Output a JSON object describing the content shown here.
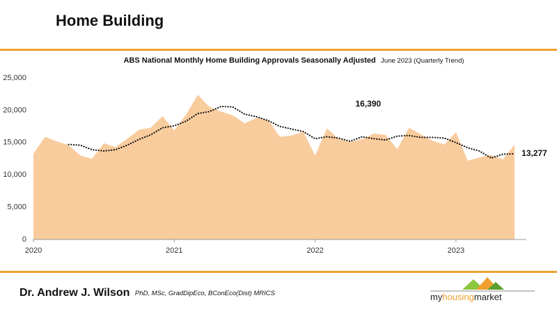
{
  "header": {
    "title": "Home Building"
  },
  "chart_data": {
    "type": "area",
    "title": "ABS National Monthly Home Building Approvals Seasonally Adjusted",
    "subtitle": "June 2023 (Quarterly Trend)",
    "x": [
      2020.0,
      2020.0833,
      2020.1667,
      2020.25,
      2020.3333,
      2020.4167,
      2020.5,
      2020.5833,
      2020.6667,
      2020.75,
      2020.8333,
      2020.9167,
      2021.0,
      2021.0833,
      2021.1667,
      2021.25,
      2021.3333,
      2021.4167,
      2021.5,
      2021.5833,
      2021.6667,
      2021.75,
      2021.8333,
      2021.9167,
      2022.0,
      2022.0833,
      2022.1667,
      2022.25,
      2022.3333,
      2022.4167,
      2022.5,
      2022.5833,
      2022.6667,
      2022.75,
      2022.8333,
      2022.9167,
      2023.0,
      2023.0833,
      2023.1667,
      2023.25,
      2023.3333,
      2023.4167
    ],
    "series": [
      {
        "name": "Seasonally Adjusted",
        "color": "#f9cc9e",
        "style": "area",
        "values": [
          13300,
          15900,
          15200,
          14600,
          13000,
          12500,
          14900,
          14300,
          15600,
          17000,
          17300,
          19100,
          16900,
          19300,
          22400,
          20500,
          19800,
          19200,
          18000,
          18800,
          18500,
          15900,
          16100,
          16700,
          13000,
          17200,
          15600,
          15100,
          15500,
          16390,
          16200,
          14000,
          17300,
          16300,
          15300,
          14700,
          16600,
          12200,
          12700,
          13100,
          12400,
          14700
        ]
      },
      {
        "name": "Quarterly Trend",
        "color": "#111111",
        "style": "dotted",
        "values": [
          null,
          null,
          null,
          14700,
          14600,
          13900,
          13700,
          13900,
          14600,
          15500,
          16200,
          17300,
          17600,
          18300,
          19500,
          19800,
          20600,
          20500,
          19400,
          19000,
          18400,
          17500,
          17100,
          16700,
          15600,
          15900,
          15700,
          15200,
          15900,
          15600,
          15400,
          16000,
          16100,
          15800,
          15800,
          15700,
          15000,
          14200,
          13700,
          12600,
          13200,
          13277
        ]
      }
    ],
    "annotations": [
      {
        "text": "16,390",
        "x": 2022.4167,
        "y": 16390
      },
      {
        "text": "13,277",
        "x": 2023.4167,
        "y": 13277
      }
    ],
    "xlim": [
      2020,
      2023.5
    ],
    "xticks": [
      2020,
      2021,
      2022,
      2023
    ],
    "ylim": [
      0,
      25000
    ],
    "yticks": [
      0,
      {
        "value": 5000,
        "label": "5,000"
      },
      {
        "value": 10000,
        "label": "10,000"
      },
      {
        "value": 15000,
        "label": "15,000"
      },
      {
        "value": 20000,
        "label": "20,000"
      },
      {
        "value": 25000,
        "label": "25,000"
      }
    ],
    "grid": false
  },
  "footer": {
    "author": "Dr. Andrew J. Wilson",
    "credentials": "PhD, MSc, GradDipEco, BConEco(Dist) MRICS",
    "logo": [
      "my",
      "housing",
      "market"
    ]
  }
}
